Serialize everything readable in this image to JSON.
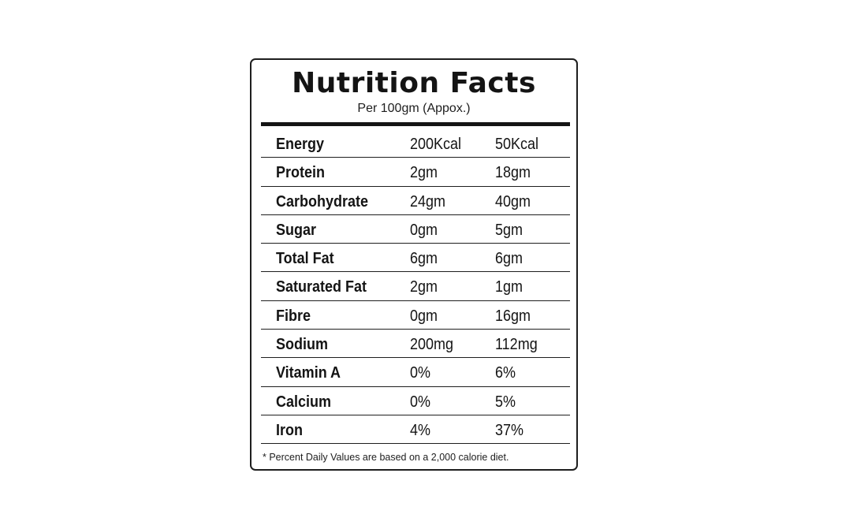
{
  "label": {
    "title": "Nutrition Facts",
    "subtitle": "Per 100gm (Appox.)",
    "rows": [
      {
        "name": "Energy",
        "value1": "200Kcal",
        "value2": "50Kcal"
      },
      {
        "name": "Protein",
        "value1": "2gm",
        "value2": "18gm"
      },
      {
        "name": "Carbohydrate",
        "value1": "24gm",
        "value2": "40gm"
      },
      {
        "name": "Sugar",
        "value1": "0gm",
        "value2": "5gm"
      },
      {
        "name": "Total Fat",
        "value1": "6gm",
        "value2": "6gm"
      },
      {
        "name": "Saturated Fat",
        "value1": "2gm",
        "value2": "1gm"
      },
      {
        "name": "Fibre",
        "value1": "0gm",
        "value2": "16gm"
      },
      {
        "name": "Sodium",
        "value1": "200mg",
        "value2": "112mg"
      },
      {
        "name": "Vitamin A",
        "value1": "0%",
        "value2": "6%"
      },
      {
        "name": "Calcium",
        "value1": "0%",
        "value2": "5%"
      },
      {
        "name": "Iron",
        "value1": "4%",
        "value2": "37%"
      }
    ],
    "footnote": "* Percent Daily Values are based on a 2,000 calorie diet."
  }
}
